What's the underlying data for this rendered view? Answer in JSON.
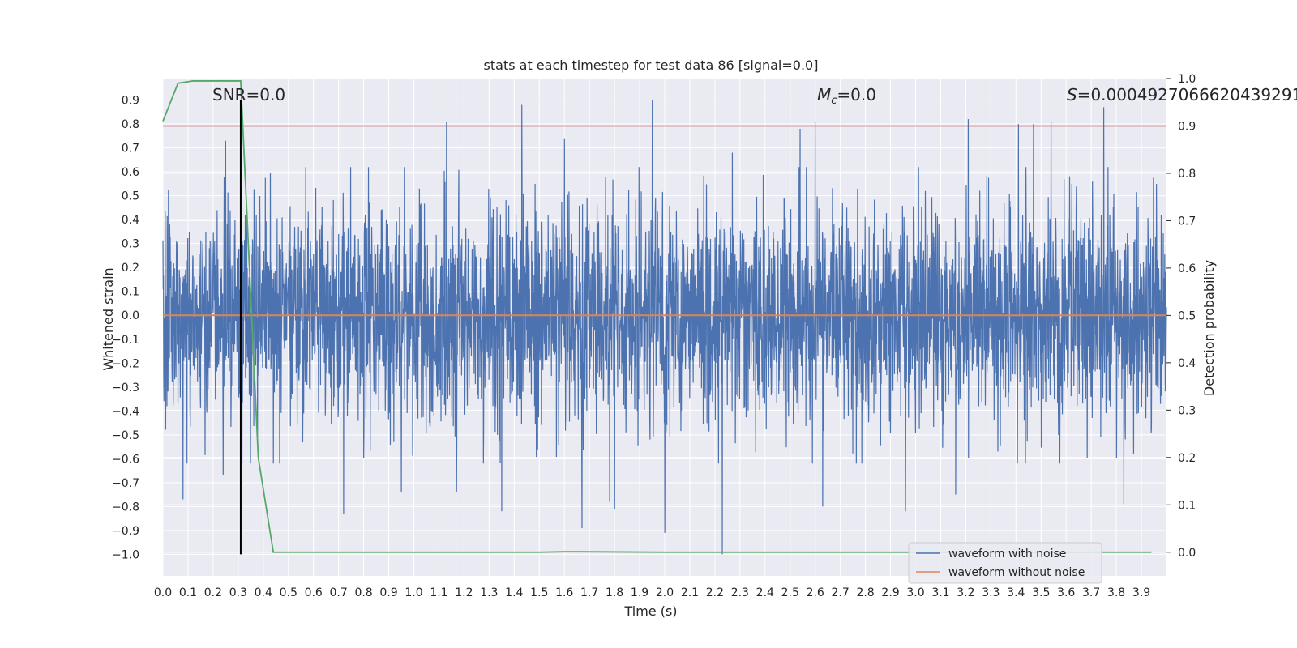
{
  "chart_data": {
    "type": "line",
    "title": "stats at each timestep for test data 86 [signal=0.0]",
    "xlabel": "Time (s)",
    "ylabel": "Whitened strain",
    "y2label": "Detection probability",
    "xlim": [
      0.0,
      4.0
    ],
    "ylim": [
      -1.09,
      0.99
    ],
    "y2lim": [
      -0.05,
      1.0
    ],
    "grid": true,
    "xticks": [
      "0.0",
      "0.1",
      "0.2",
      "0.3",
      "0.4",
      "0.5",
      "0.6",
      "0.7",
      "0.8",
      "0.9",
      "1.0",
      "1.1",
      "1.2",
      "1.3",
      "1.4",
      "1.5",
      "1.6",
      "1.7",
      "1.8",
      "1.9",
      "2.0",
      "2.1",
      "2.2",
      "2.3",
      "2.4",
      "2.5",
      "2.6",
      "2.7",
      "2.8",
      "2.9",
      "3.0",
      "3.1",
      "3.2",
      "3.3",
      "3.4",
      "3.5",
      "3.6",
      "3.7",
      "3.8",
      "3.9"
    ],
    "yticks": [
      "−1.0",
      "−0.9",
      "−0.8",
      "−0.7",
      "−0.6",
      "−0.5",
      "−0.4",
      "−0.3",
      "−0.2",
      "−0.1",
      "0.0",
      "0.1",
      "0.2",
      "0.3",
      "0.4",
      "0.5",
      "0.6",
      "0.7",
      "0.8",
      "0.9"
    ],
    "y2ticks": [
      "0.0",
      "0.1",
      "0.2",
      "0.3",
      "0.4",
      "0.5",
      "0.6",
      "0.7",
      "0.8",
      "0.9",
      "1.0"
    ],
    "annotations": {
      "snr": "SNR=0.0",
      "mc_symbol": "M",
      "mc_sub": "c",
      "mc_value": "=0.0",
      "s_symbol": "S",
      "s_value": "=0.0004927066620439291"
    },
    "legend": {
      "location": "lower-right",
      "entries": [
        "waveform with noise",
        "waveform without noise"
      ]
    },
    "colors": {
      "noise": "#4c72b0",
      "clean": "#dd8452",
      "probability": "#55a868",
      "threshold": "#c44e52",
      "marker": "#000000",
      "background": "#eaeaf2",
      "grid": "#ffffff"
    },
    "series": [
      {
        "name": "waveform with noise",
        "description": "dense whitened noise, mostly between -0.55 and 0.55 with spikes; max about 0.90 near t=1.95, min about -1.0 near t=2.23",
        "spikes": [
          {
            "t": 0.31,
            "v": 0.89
          },
          {
            "t": 0.24,
            "v": 0.62
          },
          {
            "t": 0.25,
            "v": 0.73
          },
          {
            "t": 0.08,
            "v": -0.77
          },
          {
            "t": 0.24,
            "v": -0.67
          },
          {
            "t": 0.72,
            "v": -0.83
          },
          {
            "t": 0.95,
            "v": -0.74
          },
          {
            "t": 1.13,
            "v": 0.81
          },
          {
            "t": 1.17,
            "v": -0.74
          },
          {
            "t": 1.35,
            "v": -0.82
          },
          {
            "t": 1.43,
            "v": 0.88
          },
          {
            "t": 1.6,
            "v": 0.74
          },
          {
            "t": 1.67,
            "v": -0.89
          },
          {
            "t": 1.78,
            "v": -0.78
          },
          {
            "t": 1.8,
            "v": -0.81
          },
          {
            "t": 1.95,
            "v": 0.9
          },
          {
            "t": 2.0,
            "v": -0.91
          },
          {
            "t": 2.23,
            "v": -1.0
          },
          {
            "t": 2.27,
            "v": 0.68
          },
          {
            "t": 2.54,
            "v": 0.78
          },
          {
            "t": 2.63,
            "v": -0.8
          },
          {
            "t": 2.6,
            "v": 0.81
          },
          {
            "t": 2.96,
            "v": -0.82
          },
          {
            "t": 3.21,
            "v": 0.82
          },
          {
            "t": 3.16,
            "v": -0.75
          },
          {
            "t": 3.41,
            "v": 0.8
          },
          {
            "t": 3.47,
            "v": 0.8
          },
          {
            "t": 3.54,
            "v": 0.81
          },
          {
            "t": 3.75,
            "v": 0.87
          },
          {
            "t": 3.83,
            "v": -0.79
          }
        ]
      },
      {
        "name": "waveform without noise",
        "x": [
          0.0,
          4.0
        ],
        "values": [
          0.0,
          0.0
        ]
      },
      {
        "name": "detection probability",
        "axis": "right",
        "x": [
          0.0,
          0.06,
          0.12,
          0.19,
          0.25,
          0.31,
          0.38,
          0.44,
          0.5,
          1.0,
          1.5,
          1.6,
          1.66,
          2.0,
          3.0,
          3.94
        ],
        "values": [
          0.91,
          0.99,
          0.995,
          0.995,
          0.995,
          0.995,
          0.2,
          0.0,
          0.0,
          0.0,
          0.0,
          0.001,
          0.001,
          0.0,
          0.0,
          0.0
        ]
      },
      {
        "name": "threshold",
        "axis": "right",
        "x": [
          0.0,
          4.0
        ],
        "values": [
          0.9,
          0.9
        ]
      },
      {
        "name": "detection time marker",
        "x": [
          0.31,
          0.31
        ],
        "values": [
          -1.0,
          0.9
        ]
      }
    ]
  }
}
